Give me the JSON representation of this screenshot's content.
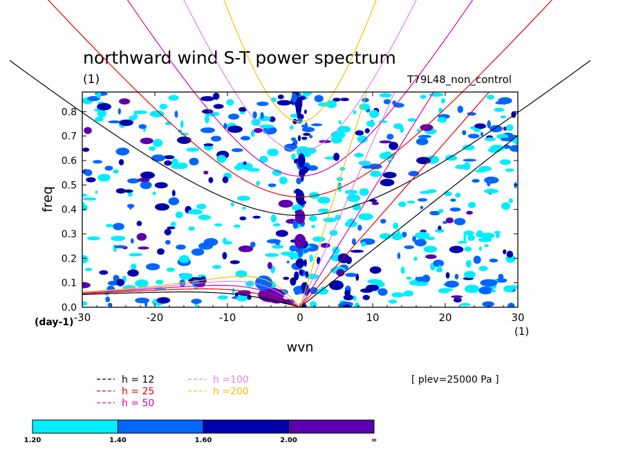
{
  "chart_data": {
    "type": "contour",
    "title": "northward wind S-T power spectrum",
    "units_left": "(1)",
    "run_label": "T79L48_non_control",
    "xlabel": "wvn",
    "ylabel": "freq",
    "x_unit_label": "(1)",
    "y_unit_label": "(day-1)",
    "xlim": [
      -30,
      30
    ],
    "ylim": [
      0,
      0.88
    ],
    "xticks": [
      -30,
      -20,
      -10,
      0,
      10,
      20,
      30
    ],
    "xtick_labels": [
      "-30",
      "-20",
      "-10",
      "0",
      "10",
      "20",
      "30"
    ],
    "yticks": [
      0,
      0.1,
      0.2,
      0.3,
      0.4,
      0.5,
      0.6,
      0.7,
      0.8
    ],
    "ytick_labels": [
      "0.0",
      "0.1",
      "0.2",
      "0.3",
      "0.4",
      "0.5",
      "0.6",
      "0.7",
      "0.8"
    ],
    "plev_label": "[ plev=25000 Pa ]",
    "dispersion_curves": [
      {
        "h": 12,
        "label": "h = 12",
        "color": "#000000"
      },
      {
        "h": 25,
        "label": "h = 25",
        "color": "#e00000"
      },
      {
        "h": 50,
        "label": "h = 50",
        "color": "#d000b0"
      },
      {
        "h": 100,
        "label": "h =100",
        "color": "#e080e0"
      },
      {
        "h": 200,
        "label": "h =200",
        "color": "#f0c000"
      }
    ],
    "colorbar": {
      "levels": [
        "1.20",
        "1.40",
        "1.60",
        "2.00",
        "∞"
      ],
      "colors": [
        "#00eeff",
        "#0066ff",
        "#0000aa",
        "#5a00b0"
      ]
    },
    "power_regions": [
      {
        "x": -0.2,
        "y": 0.82,
        "rx": 0.4,
        "ry": 0.04,
        "level": 2
      },
      {
        "x": 0.2,
        "y": 0.6,
        "rx": 0.5,
        "ry": 0.03,
        "level": 2
      },
      {
        "x": 0.0,
        "y": 0.45,
        "rx": 0.6,
        "ry": 0.03,
        "level": 2
      },
      {
        "x": 0.0,
        "y": 0.37,
        "rx": 0.7,
        "ry": 0.03,
        "level": 3
      },
      {
        "x": 0.0,
        "y": 0.27,
        "rx": 0.8,
        "ry": 0.03,
        "level": 3
      },
      {
        "x": 0.0,
        "y": 0.18,
        "rx": 0.6,
        "ry": 0.02,
        "level": 2
      },
      {
        "x": -4.0,
        "y": 0.05,
        "rx": 1.8,
        "ry": 0.03,
        "level": 3
      },
      {
        "x": -3.2,
        "y": 0.03,
        "rx": 1.0,
        "ry": 0.015,
        "level": 3
      },
      {
        "x": -5.0,
        "y": 0.1,
        "rx": 1.2,
        "ry": 0.03,
        "level": 1
      },
      {
        "x": 5.0,
        "y": 0.09,
        "rx": 1.0,
        "ry": 0.02,
        "level": 2
      },
      {
        "x": 6.0,
        "y": 0.2,
        "rx": 0.8,
        "ry": 0.02,
        "level": 2
      },
      {
        "x": -19.0,
        "y": 0.41,
        "rx": 1.0,
        "ry": 0.015,
        "level": 2
      },
      {
        "x": -25.0,
        "y": 0.33,
        "rx": 0.8,
        "ry": 0.015,
        "level": 1
      },
      {
        "x": -23.0,
        "y": 0.14,
        "rx": 0.8,
        "ry": 0.015,
        "level": 2
      },
      {
        "x": -21.0,
        "y": 0.54,
        "rx": 1.0,
        "ry": 0.015,
        "level": 2
      },
      {
        "x": 17.0,
        "y": 0.6,
        "rx": 1.0,
        "ry": 0.015,
        "level": 2
      },
      {
        "x": 22.0,
        "y": 0.35,
        "rx": 0.8,
        "ry": 0.015,
        "level": 1
      },
      {
        "x": 26.0,
        "y": 0.1,
        "rx": 1.2,
        "ry": 0.015,
        "level": 1
      },
      {
        "x": 12.0,
        "y": 0.51,
        "rx": 1.0,
        "ry": 0.015,
        "level": 2
      },
      {
        "x": -13.0,
        "y": 0.25,
        "rx": 1.0,
        "ry": 0.015,
        "level": 1
      },
      {
        "x": 27.0,
        "y": 0.73,
        "rx": 0.9,
        "ry": 0.015,
        "level": 1
      },
      {
        "x": -27.0,
        "y": 0.82,
        "rx": 1.0,
        "ry": 0.015,
        "level": 2
      }
    ]
  }
}
